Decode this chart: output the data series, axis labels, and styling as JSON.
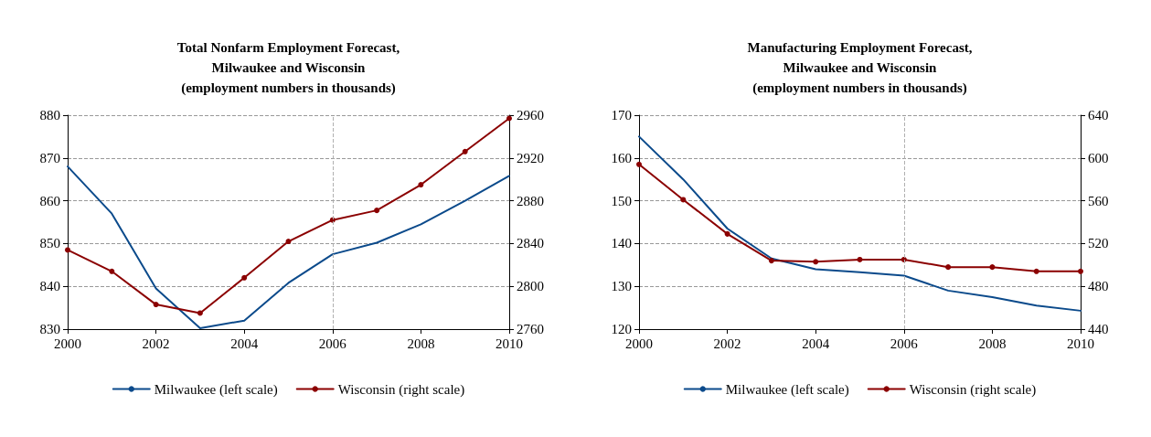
{
  "chart_data": [
    {
      "type": "line",
      "title": "Total Nonfarm Employment Forecast,\nMilwaukee and Wisconsin\n(employment numbers in thousands)",
      "x": [
        2000,
        2001,
        2002,
        2003,
        2004,
        2005,
        2006,
        2007,
        2008,
        2009,
        2010
      ],
      "xlim": [
        2000,
        2010
      ],
      "xticks": [
        2000,
        2002,
        2004,
        2006,
        2008,
        2010
      ],
      "ylim": [
        830,
        880
      ],
      "yticks": [
        830,
        840,
        850,
        860,
        870,
        880
      ],
      "y2lim": [
        2760,
        2960
      ],
      "y2ticks": [
        2760,
        2800,
        2840,
        2880,
        2920,
        2960
      ],
      "grid": "y",
      "legend": "bottom",
      "series": [
        {
          "name": "Milwaukee (left scale)",
          "color": "#0b4a8b",
          "marker": "none",
          "values": [
            868,
            857,
            839.5,
            830.2,
            832,
            840.8,
            847.5,
            850.2,
            854.5,
            860,
            865.8
          ]
        },
        {
          "name": "Wisconsin (right scale)",
          "color": "#8b0000",
          "marker": "circle",
          "axis": "y2",
          "values": [
            2834,
            2814,
            2783,
            2775,
            2808,
            2842,
            2862,
            2871,
            2895,
            2926,
            2957
          ]
        }
      ],
      "ref_lines": [
        {
          "axis": "x",
          "value": 2006,
          "color": "#b0b0b0",
          "line_style": "dashed"
        }
      ]
    },
    {
      "type": "line",
      "title": "Manufacturing Employment Forecast,\nMilwaukee and Wisconsin\n(employment numbers in thousands)",
      "x": [
        2000,
        2001,
        2002,
        2003,
        2004,
        2005,
        2006,
        2007,
        2008,
        2009,
        2010
      ],
      "xlim": [
        2000,
        2010
      ],
      "xticks": [
        2000,
        2002,
        2004,
        2006,
        2008,
        2010
      ],
      "ylim": [
        120,
        170
      ],
      "yticks": [
        120,
        130,
        140,
        150,
        160,
        170
      ],
      "y2lim": [
        440,
        640
      ],
      "y2ticks": [
        440,
        480,
        520,
        560,
        600,
        640
      ],
      "grid": "y",
      "legend": "bottom",
      "series": [
        {
          "name": "Milwaukee (left scale)",
          "color": "#0b4a8b",
          "marker": "none",
          "values": [
            165,
            155,
            143.5,
            136.5,
            134,
            133.3,
            132.5,
            129,
            127.5,
            125.5,
            124.3
          ]
        },
        {
          "name": "Wisconsin (right scale)",
          "color": "#8b0000",
          "marker": "circle",
          "axis": "y2",
          "values": [
            594,
            561,
            529,
            504,
            503,
            505,
            505,
            498,
            498,
            494,
            494
          ]
        }
      ],
      "ref_lines": [
        {
          "axis": "x",
          "value": 2006,
          "color": "#b0b0b0",
          "line_style": "dashed"
        }
      ]
    }
  ]
}
